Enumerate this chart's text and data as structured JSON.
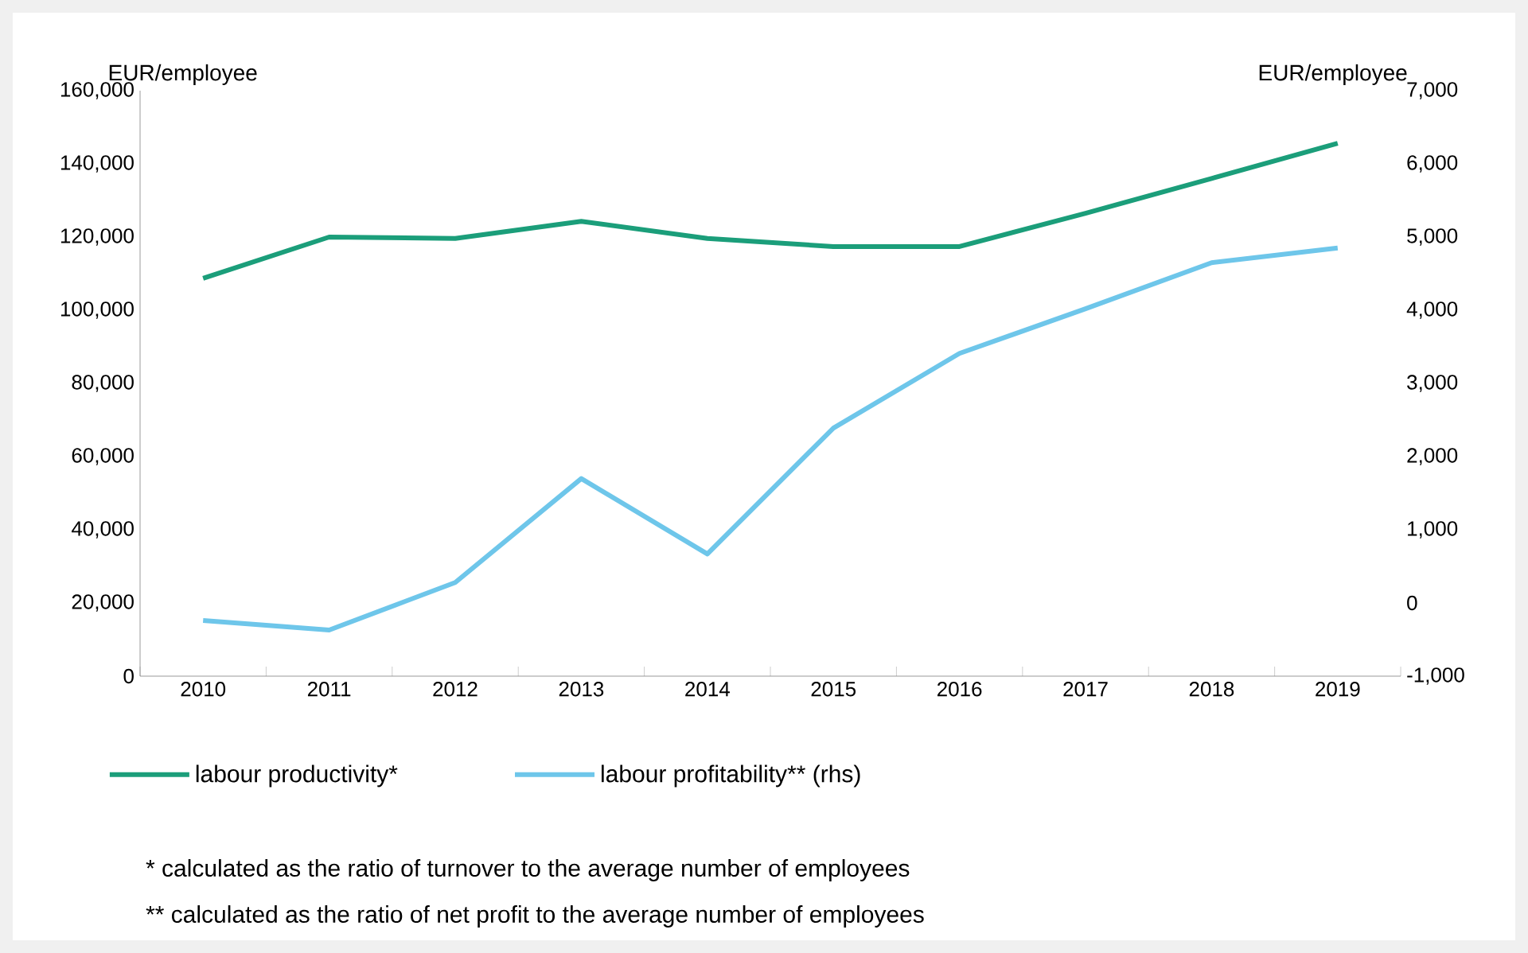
{
  "chart_data": {
    "type": "line",
    "ylabel": "EUR/employee",
    "y2label": "EUR/employee",
    "categories": [
      "2010",
      "2011",
      "2012",
      "2013",
      "2014",
      "2015",
      "2016",
      "2017",
      "2018",
      "2019"
    ],
    "series": [
      {
        "name": "labour productivity*",
        "color": "#1b9e7a",
        "values": [
          108700,
          120000,
          119600,
          124300,
          119600,
          117400,
          117400,
          126500,
          136000,
          145600
        ]
      },
      {
        "name": "labour profitability** (rhs)",
        "color": "#6ec6ea",
        "axis": "y2",
        "values": [
          -240,
          -370,
          280,
          1700,
          670,
          2390,
          3410,
          4020,
          4650,
          4850
        ]
      }
    ],
    "ylim": [
      0,
      160000
    ],
    "yticks": [
      {
        "value": 0,
        "label": "0"
      },
      {
        "value": 20000,
        "label": "20,000"
      },
      {
        "value": 40000,
        "label": "40,000"
      },
      {
        "value": 60000,
        "label": "60,000"
      },
      {
        "value": 80000,
        "label": "80,000"
      },
      {
        "value": 100000,
        "label": "100,000"
      },
      {
        "value": 120000,
        "label": "120,000"
      },
      {
        "value": 140000,
        "label": "140,000"
      },
      {
        "value": 160000,
        "label": "160,000"
      }
    ],
    "y2lim": [
      -1000,
      7000
    ],
    "y2ticks": [
      {
        "value": -1000,
        "label": "-1,000"
      },
      {
        "value": 0,
        "label": "0"
      },
      {
        "value": 1000,
        "label": "1,000"
      },
      {
        "value": 2000,
        "label": "2,000"
      },
      {
        "value": 3000,
        "label": "3,000"
      },
      {
        "value": 4000,
        "label": "4,000"
      },
      {
        "value": 5000,
        "label": "5,000"
      },
      {
        "value": 6000,
        "label": "6,000"
      },
      {
        "value": 7000,
        "label": "7,000"
      }
    ],
    "legend": "bottom",
    "grid": false,
    "marker": "none",
    "line_style": "solid",
    "annotations": [
      "* calculated as the ratio of turnover to the average number of employees",
      "** calculated as the ratio of net profit to the average number of employees"
    ]
  }
}
